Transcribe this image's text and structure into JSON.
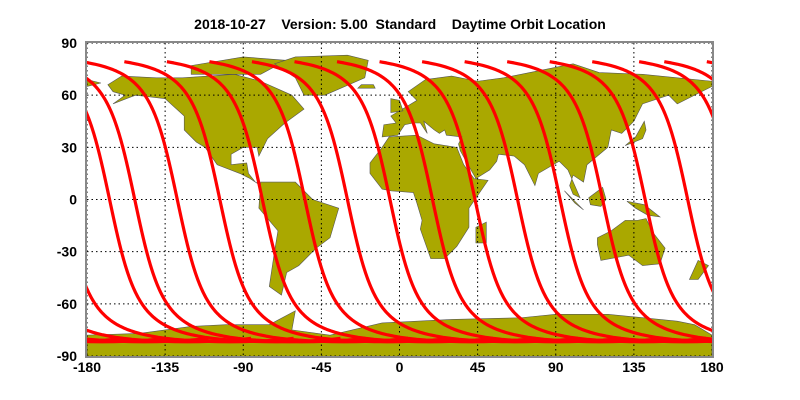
{
  "title": {
    "date": "2018-10-27",
    "version": "Version: 5.00",
    "mode": "Standard",
    "product": "Daytime Orbit Location"
  },
  "map_data": {
    "type": "map",
    "projection": "equirectangular",
    "lon_range": [
      -180,
      180
    ],
    "lat_range": [
      -90,
      90
    ],
    "lon_ticks": [
      "-180",
      "-135",
      "-90",
      "-45",
      "0",
      "45",
      "90",
      "135",
      "180"
    ],
    "lat_ticks": [
      "90",
      "60",
      "30",
      "0",
      "-30",
      "-60",
      "-90"
    ],
    "grid": true,
    "land_color": "#aaa800",
    "track_color": "#ff0000",
    "orbit_tracks": {
      "equator_crossing_lon": [
        -167,
        -152.5,
        -128,
        -103.5,
        -79,
        -54.5,
        -30,
        -5.5,
        19,
        43.5,
        68,
        92.5,
        117,
        141.5,
        166
      ],
      "inclination_deg": 98.2,
      "max_lat": 81.8
    }
  }
}
